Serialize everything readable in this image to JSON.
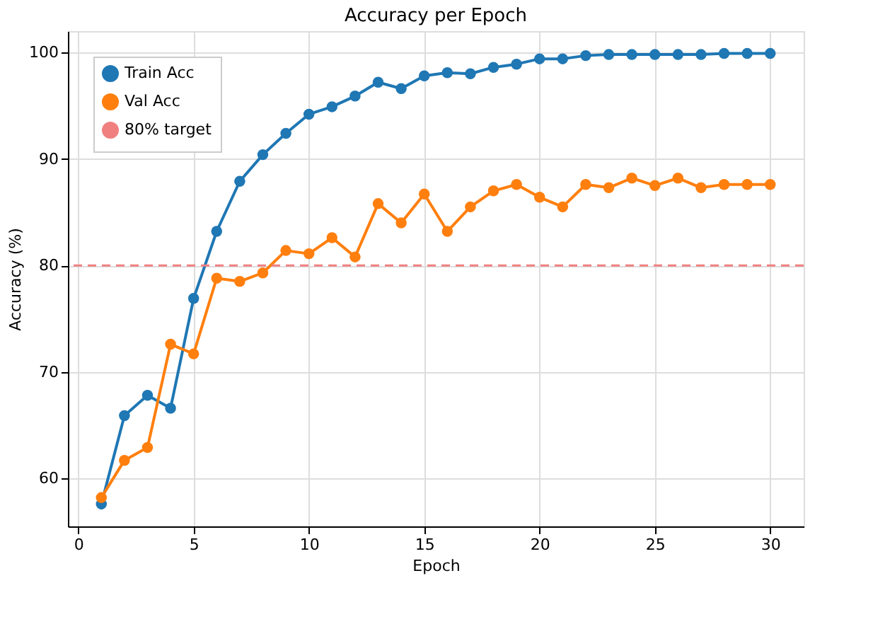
{
  "chart_data": {
    "type": "line",
    "title": "Accuracy per Epoch",
    "xlabel": "Epoch",
    "ylabel": "Accuracy (%)",
    "x": [
      1,
      2,
      3,
      4,
      5,
      6,
      7,
      8,
      9,
      10,
      11,
      12,
      13,
      14,
      15,
      16,
      17,
      18,
      19,
      20,
      21,
      22,
      23,
      24,
      25,
      26,
      27,
      28,
      29,
      30
    ],
    "series": [
      {
        "name": "Train Acc",
        "color": "#1f77b4",
        "values": [
          57.6,
          65.9,
          67.8,
          66.6,
          76.9,
          83.2,
          87.9,
          90.4,
          92.4,
          94.2,
          94.9,
          95.9,
          97.2,
          96.6,
          97.8,
          98.1,
          98.0,
          98.6,
          98.9,
          99.4,
          99.4,
          99.7,
          99.8,
          99.8,
          99.8,
          99.8,
          99.8,
          99.9,
          99.9,
          99.9
        ]
      },
      {
        "name": "Val Acc",
        "color": "#ff7f0e",
        "values": [
          58.2,
          61.7,
          62.9,
          72.6,
          71.7,
          78.8,
          78.5,
          79.3,
          81.4,
          81.1,
          82.6,
          80.8,
          85.8,
          84.0,
          86.7,
          83.2,
          85.5,
          87.0,
          87.6,
          86.4,
          85.5,
          87.6,
          87.3,
          88.2,
          87.5,
          88.2,
          87.3,
          87.6,
          87.6,
          87.6
        ]
      }
    ],
    "ref_lines": [
      {
        "axis": "y",
        "value": 80,
        "label": "80% target",
        "color": "#f08080",
        "line_style": "dashed"
      }
    ],
    "xlim": [
      -0.45,
      31.45
    ],
    "xticks": [
      0,
      5,
      10,
      15,
      20,
      25,
      30
    ],
    "ylim": [
      55.5,
      102
    ],
    "yticks": [
      60,
      70,
      80,
      90,
      100
    ],
    "grid": true,
    "legend": "top left",
    "marker": "circle",
    "line_style": "solid"
  }
}
